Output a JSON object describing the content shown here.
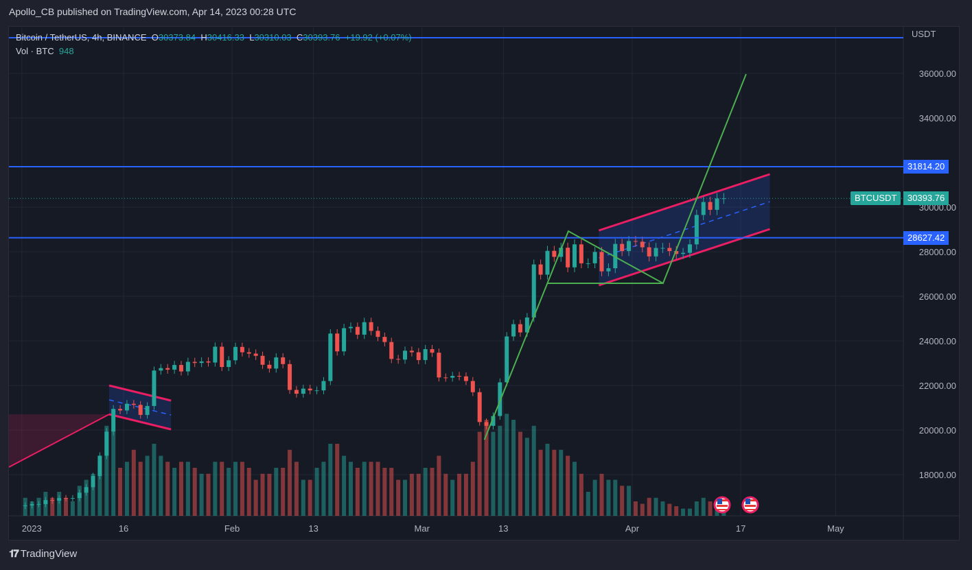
{
  "header": {
    "publisher": "Apollo_CB published on TradingView.com, Apr 14, 2023 00:28 UTC"
  },
  "legend": {
    "symbol": "Bitcoin / TetherUS, 4h, BINANCE",
    "o_label": "O",
    "o": "30373.84",
    "h_label": "H",
    "h": "30416.33",
    "l_label": "L",
    "l": "30310.03",
    "c_label": "C",
    "c": "30393.76",
    "change": "+19.92 (+0.07%)",
    "vol_label": "Vol · BTC",
    "vol": "948"
  },
  "price_axis": {
    "unit": "USDT",
    "ticks": [
      "18000.00",
      "20000.00",
      "22000.00",
      "24000.00",
      "26000.00",
      "28000.00",
      "30000.00",
      "34000.00",
      "36000.00"
    ],
    "tick_values": [
      18000,
      20000,
      22000,
      24000,
      26000,
      28000,
      30000,
      34000,
      36000
    ],
    "last_symbol": "BTCUSDT",
    "last_price": "30393.76",
    "levels": [
      {
        "label": "31814.20",
        "value": 31814.2
      },
      {
        "label": "28627.42",
        "value": 28627.42
      }
    ],
    "top_level": 37600
  },
  "time_axis": {
    "labels": [
      {
        "text": "2023",
        "date": "2023-01-01"
      },
      {
        "text": "16",
        "date": "2023-01-16"
      },
      {
        "text": "Feb",
        "date": "2023-02-01"
      },
      {
        "text": "13",
        "date": "2023-02-13"
      },
      {
        "text": "Mar",
        "date": "2023-03-01"
      },
      {
        "text": "13",
        "date": "2023-03-13"
      },
      {
        "text": "Apr",
        "date": "2023-04-01"
      },
      {
        "text": "17",
        "date": "2023-04-17"
      },
      {
        "text": "May",
        "date": "2023-05-01"
      }
    ]
  },
  "footer": {
    "brand": "TradingView",
    "logo": "17"
  },
  "colors": {
    "up": "#26a69a",
    "down": "#ef5350",
    "level": "#2962ff",
    "channel": "#e91e63",
    "trend": "#4caf50",
    "background": "#161a25"
  },
  "icons": [
    "us-flag-event-icon",
    "us-flag-event-icon"
  ],
  "chart_data": {
    "type": "candlestick",
    "title": "Bitcoin / TetherUS, 4h, BINANCE",
    "start_date": "2023-01-01",
    "interval_shown": "4h",
    "ylim": [
      16200,
      38300
    ],
    "grid": true,
    "daily_close": [
      16620,
      16680,
      16680,
      16860,
      16830,
      16950,
      16940,
      16950,
      17190,
      17440,
      17940,
      18850,
      19930,
      20950,
      20880,
      21180,
      21130,
      20680,
      21080,
      22670,
      22780,
      22710,
      22920,
      22630,
      23060,
      23010,
      23080,
      23030,
      23740,
      22830,
      23130,
      23730,
      23490,
      23430,
      23330,
      22930,
      22760,
      23260,
      22960,
      21800,
      21630,
      21860,
      21780,
      21780,
      22200,
      24330,
      23530,
      24570,
      24630,
      24280,
      24840,
      24450,
      24180,
      23950,
      23190,
      23160,
      23560,
      23490,
      23140,
      23630,
      23470,
      22360,
      22350,
      22430,
      22410,
      22200,
      21700,
      20360,
      20190,
      20630,
      22140,
      24200,
      24750,
      24380,
      25050,
      27430,
      26970,
      28040,
      27770,
      28180,
      27300,
      28330,
      27480,
      27480,
      27990,
      27120,
      27260,
      28350,
      28030,
      28480,
      28450,
      28200,
      27790,
      28170,
      28170,
      28030,
      27900,
      27950,
      28330,
      29650,
      30230,
      29880,
      30390,
      30394
    ],
    "volume_relative": [
      0.15,
      0.12,
      0.15,
      0.2,
      0.15,
      0.2,
      0.15,
      0.12,
      0.25,
      0.3,
      0.35,
      0.45,
      0.75,
      0.7,
      0.4,
      0.45,
      0.55,
      0.45,
      0.5,
      0.6,
      0.5,
      0.45,
      0.4,
      0.45,
      0.45,
      0.4,
      0.35,
      0.35,
      0.45,
      0.45,
      0.4,
      0.45,
      0.45,
      0.4,
      0.3,
      0.35,
      0.35,
      0.4,
      0.4,
      0.55,
      0.45,
      0.3,
      0.3,
      0.4,
      0.45,
      0.6,
      0.6,
      0.5,
      0.45,
      0.4,
      0.45,
      0.45,
      0.45,
      0.4,
      0.4,
      0.3,
      0.3,
      0.35,
      0.35,
      0.4,
      0.4,
      0.5,
      0.35,
      0.3,
      0.35,
      0.35,
      0.45,
      0.7,
      0.8,
      0.7,
      0.75,
      0.85,
      0.8,
      0.7,
      0.65,
      0.75,
      0.55,
      0.6,
      0.55,
      0.55,
      0.5,
      0.45,
      0.35,
      0.2,
      0.3,
      0.35,
      0.3,
      0.3,
      0.25,
      0.25,
      0.12,
      0.1,
      0.15,
      0.15,
      0.12,
      0.1,
      0.08,
      0.06,
      0.06,
      0.12,
      0.15,
      0.12,
      0.1,
      0.05
    ],
    "drawings": {
      "trend_path": [
        [
          "2023-03-10 05:00",
          19570
        ],
        [
          "2023-03-22 14:00",
          28923
        ],
        [
          "2023-04-05 13:00",
          26585
        ],
        [
          "2023-04-17 19:00",
          35970
        ]
      ],
      "triangle_base": [
        [
          "2023-03-19 11:00",
          26585
        ],
        [
          "2023-04-05 13:00",
          26585
        ]
      ],
      "flag_channel": {
        "top": [
          [
            "2023-01-13 21:00",
            22000
          ],
          [
            "2023-01-23 00:00",
            21323
          ]
        ],
        "bottom": [
          [
            "2023-01-13 21:00",
            20708
          ],
          [
            "2023-01-23 00:00",
            20031
          ]
        ]
      },
      "rising_channel": {
        "top": [
          [
            "2023-03-27 02:00",
            28954
          ],
          [
            "2023-04-21 07:00",
            31477
          ]
        ],
        "bottom": [
          [
            "2023-03-27 02:00",
            26492
          ],
          [
            "2023-04-21 07:00",
            29015
          ]
        ]
      },
      "pole_arc": {
        "from": [
          "2022-12-30 00:00",
          18338
        ],
        "to": [
          "2023-01-13 21:00",
          20708
        ],
        "cap": 20708
      }
    }
  }
}
